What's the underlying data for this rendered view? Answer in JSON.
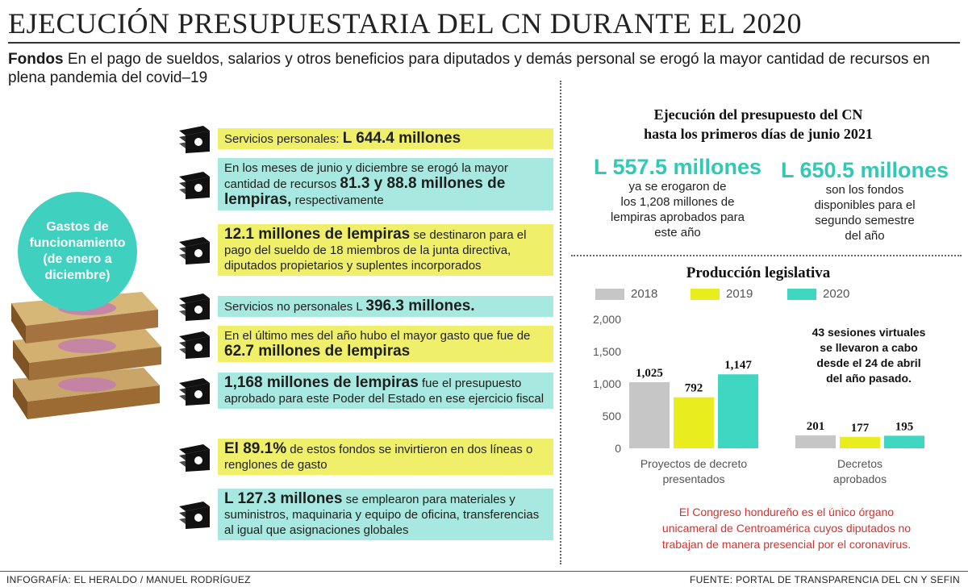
{
  "title": "EJECUCIÓN PRESUPUESTARIA DEL CN DURANTE EL 2020",
  "intro": {
    "lead": "Fondos",
    "text": " En el pago de sueldos, salarios y otros beneficios para diputados y demás personal se erogó la mayor cantidad de recursos en plena pandemia del covid–19"
  },
  "circle": {
    "lines": [
      "Gastos de",
      "funcionamiento",
      "(de enero a",
      "diciembre)"
    ]
  },
  "facts": [
    {
      "pre": "Servicios personales: ",
      "bold": "L 644.4 millones",
      "post": "",
      "color": "yellow"
    },
    {
      "pre": "En los meses de junio y diciembre se erogó la mayor cantidad de recursos ",
      "bold": "81.3 y 88.8 millones de lempiras,",
      "post": " respectivamente",
      "color": "teal"
    },
    {
      "pre": "",
      "bold": "12.1 millones de lempiras",
      "post": " se destinaron para el pago del sueldo de 18 miembros de la junta directiva, diputados propietarios y suplentes incorporados",
      "color": "yellow"
    },
    {
      "pre": "Servicios no personales L ",
      "bold": "396.3 millones.",
      "post": "",
      "color": "teal"
    },
    {
      "pre": "En el último mes del año hubo el mayor gasto que fue de ",
      "bold": "62.7 millones de lempiras",
      "post": "",
      "color": "yellow"
    },
    {
      "pre": "",
      "bold": "1,168 millones de lempiras",
      "post": " fue el presupuesto aprobado para este Poder del Estado en ese ejercicio fiscal",
      "color": "teal"
    },
    {
      "pre": "",
      "bold": "El 89.1%",
      "post": " de estos fondos se invirtieron en dos líneas o renglones de gasto",
      "color": "yellow"
    },
    {
      "pre": "",
      "bold": "L 127.3 millones",
      "post": "  se emplearon para materiales y suministros, maquinaria y equipo de oficina, transferencias al igual que asignaciones globales",
      "color": "teal"
    }
  ],
  "right": {
    "heading_1": "Ejecución del presupuesto del CN",
    "heading_2": "hasta los primeros días de junio 2021",
    "kpi_1": {
      "value": "L 557.5 millones",
      "l1": "ya se erogaron de",
      "l2": "los 1,208 millones de",
      "l3": "lempiras aprobados para",
      "l4": "este año"
    },
    "kpi_2": {
      "value": "L 650.5 millones",
      "l1": "son los fondos",
      "l2": "disponibles para el",
      "l3": "segundo semestre",
      "l4": "del año"
    },
    "sessions_1": "43 sesiones virtuales",
    "sessions_2": "se llevaron a cabo",
    "sessions_3": "desde el 24 de abril",
    "sessions_4": "del año pasado.",
    "note_1": "El Congreso hondureño es el único órgano",
    "note_2": "unicameral de Centroamérica cuyos diputados no",
    "note_3": "trabajan de manera presencial por el coronavirus."
  },
  "chart_data": {
    "type": "bar",
    "title": "Producción legislativa",
    "categories": [
      [
        "Proyectos de decreto",
        "presentados"
      ],
      [
        "Decretos",
        "aprobados"
      ]
    ],
    "series": [
      {
        "name": "2018",
        "color": "#c6c6c6",
        "values": [
          1025,
          201
        ]
      },
      {
        "name": "2019",
        "color": "#e9ec1d",
        "values": [
          792,
          177
        ]
      },
      {
        "name": "2020",
        "color": "#3fd6c2",
        "values": [
          1147,
          195
        ]
      }
    ],
    "value_labels": [
      [
        "1,025",
        "201"
      ],
      [
        "792",
        "177"
      ],
      [
        "1,147",
        "195"
      ]
    ],
    "yticks": [
      0,
      500,
      1000,
      1500,
      2000
    ],
    "ytick_labels": [
      "0",
      "500",
      "1,000",
      "1,500",
      "2,000"
    ],
    "ylim": [
      0,
      2000
    ],
    "grid": false,
    "legend_position": "top"
  },
  "footer": {
    "credit": "INFOGRAFÍA: EL HERALDO / MANUEL RODRÍGUEZ",
    "source": "FUENTE: PORTAL DE TRANSPARENCIA DEL CN Y SEFIN"
  }
}
